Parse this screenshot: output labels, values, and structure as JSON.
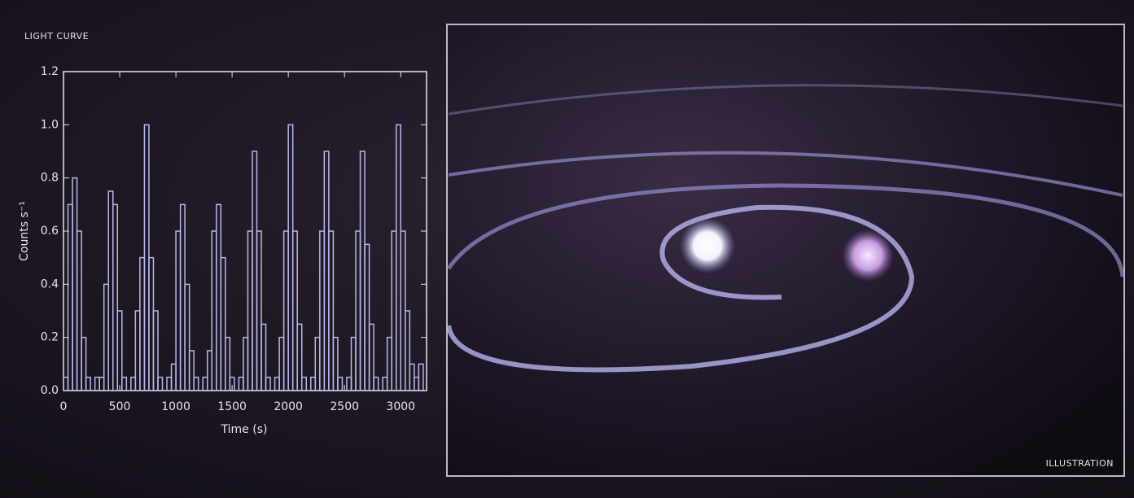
{
  "chart_data": {
    "type": "histogram",
    "panel_label": "LIGHT CURVE",
    "illustration_label": "ILLUSTRATION",
    "x_label": "Time (s)",
    "y_label": "Counts s⁻¹",
    "color": "#b9b6ea",
    "bins": [
      0,
      40,
      80,
      120,
      160,
      200,
      240,
      280,
      320,
      360,
      400,
      440,
      480,
      520,
      560,
      600,
      640,
      680,
      720,
      760,
      800,
      840,
      880,
      920,
      960,
      1000,
      1040,
      1080,
      1120,
      1160,
      1200,
      1240,
      1280,
      1320,
      1360,
      1400,
      1440,
      1480,
      1520,
      1560,
      1600,
      1640,
      1680,
      1720,
      1760,
      1800,
      1840,
      1880,
      1920,
      1960,
      2000,
      2040,
      2080,
      2120,
      2160,
      2200,
      2240,
      2280,
      2320,
      2360,
      2400,
      2440,
      2480,
      2520,
      2560,
      2600,
      2640,
      2680,
      2720,
      2760,
      2800,
      2840,
      2880,
      2920,
      2960,
      3000,
      3040,
      3080,
      3120,
      3160,
      3200
    ],
    "values": [
      0.05,
      0.7,
      0.8,
      0.6,
      0.2,
      0.05,
      0.0,
      0.05,
      0.05,
      0.4,
      0.75,
      0.7,
      0.3,
      0.05,
      0.0,
      0.05,
      0.3,
      0.5,
      1.0,
      0.5,
      0.3,
      0.05,
      0.0,
      0.05,
      0.1,
      0.6,
      0.7,
      0.4,
      0.15,
      0.05,
      0.0,
      0.05,
      0.15,
      0.6,
      0.7,
      0.5,
      0.2,
      0.05,
      0.0,
      0.05,
      0.2,
      0.6,
      0.9,
      0.6,
      0.25,
      0.05,
      0.0,
      0.05,
      0.2,
      0.6,
      1.0,
      0.6,
      0.25,
      0.05,
      0.0,
      0.05,
      0.2,
      0.6,
      0.9,
      0.6,
      0.2,
      0.05,
      0.0,
      0.05,
      0.2,
      0.6,
      0.9,
      0.55,
      0.25,
      0.05,
      0.0,
      0.05,
      0.2,
      0.6,
      1.0,
      0.6,
      0.3,
      0.1,
      0.05,
      0.1
    ],
    "xlim": [
      0,
      3230
    ],
    "ylim": [
      0,
      1.2
    ],
    "xticks": [
      0,
      500,
      1000,
      1500,
      2000,
      2500,
      3000
    ],
    "yticks": [
      {
        "value": 0,
        "label": "0.0"
      },
      {
        "value": 0.2,
        "label": "0.2"
      },
      {
        "value": 0.4,
        "label": "0.4"
      },
      {
        "value": 0.6,
        "label": "0.6"
      },
      {
        "value": 0.8,
        "label": "0.8"
      },
      {
        "value": 1.0,
        "label": "1.0"
      },
      {
        "value": 1.2,
        "label": "1.2"
      }
    ]
  }
}
